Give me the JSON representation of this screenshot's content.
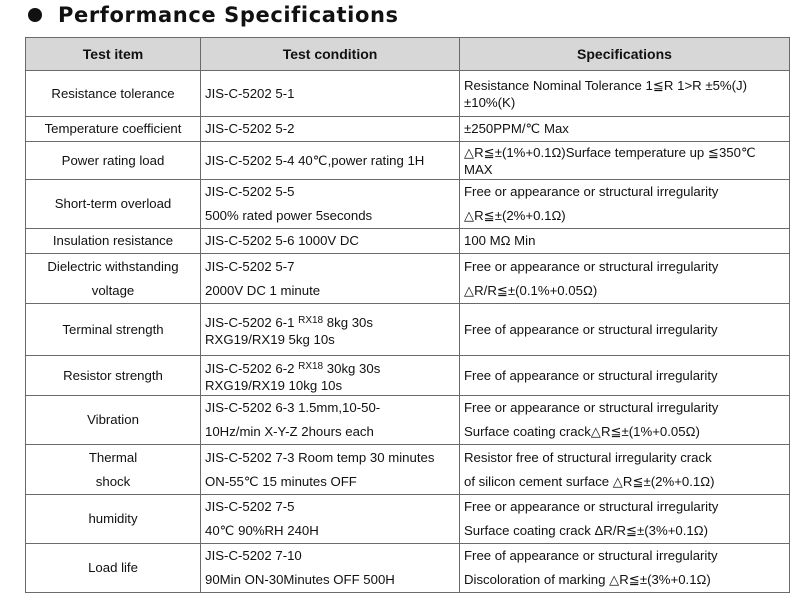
{
  "title": "Performance Specifications",
  "headers": {
    "item": "Test item",
    "condition": "Test  condition",
    "spec": "Specifications"
  },
  "rows": [
    {
      "item": [
        "Resistance tolerance"
      ],
      "condition": [
        "JIS-C-5202  5-1"
      ],
      "spec": [
        "Resistance  Nominal Tolerance 1≦R 1>R ±5%(J)",
        "±10%(K)"
      ]
    },
    {
      "item": [
        "Temperature coefficient"
      ],
      "condition": [
        "JIS-C-5202  5-2"
      ],
      "spec": [
        "±250PPM/℃    Max"
      ]
    },
    {
      "item": [
        "Power rating load"
      ],
      "condition": [
        "JIS-C-5202  5-4   40℃,power rating 1H"
      ],
      "spec": [
        "△R≦±(1%+0.1Ω)Surface temperature up ≦350℃",
        "MAX"
      ]
    },
    {
      "item": [
        "Short-term overload"
      ],
      "condition": [
        "JIS-C-5202  5-5",
        "500% rated power 5seconds"
      ],
      "spec": [
        "Free or appearance or structural irregularity",
        "△R≦±(2%+0.1Ω)"
      ]
    },
    {
      "item": [
        "Insulation resistance"
      ],
      "condition": [
        "JIS-C-5202  5-6  1000V  DC"
      ],
      "spec": [
        "100 MΩ Min"
      ]
    },
    {
      "item": [
        "Dielectric  withstanding",
        "voltage"
      ],
      "condition": [
        "JIS-C-5202  5-7",
        "2000V  DC  1 minute"
      ],
      "spec": [
        "Free or appearance or structural irregularity",
        "△R/R≦±(0.1%+0.05Ω)"
      ]
    },
    {
      "item": [
        "Terminal strength"
      ],
      "condition": [
        "JIS-C-5202 6-1 ",
        "RX18",
        " 8kg 30s",
        "RXG19/RX19   5kg 10s"
      ],
      "spec": [
        "Free of appearance or structural irregularity"
      ]
    },
    {
      "item": [
        "Resistor strength"
      ],
      "condition": [
        "JIS-C-5202 6-2 ",
        "RX18",
        " 30kg 30s",
        "RXG19/RX19   10kg 10s"
      ],
      "spec": [
        "Free of appearance or structural irregularity"
      ]
    },
    {
      "item": [
        "Vibration"
      ],
      "condition": [
        "JIS-C-5202  6-3   1.5mm,10-50-",
        "10Hz/min X-Y-Z 2hours each"
      ],
      "spec": [
        "Free or appearance or structural irregularity",
        "Surface coating crack△R≦±(1%+0.05Ω)"
      ]
    },
    {
      "item": [
        "Thermal",
        "shock"
      ],
      "condition": [
        "JIS-C-5202 7-3 Room temp 30 minutes",
        "ON-55℃ 15 minutes OFF"
      ],
      "spec": [
        "Resistor free of structural irregularity crack",
        " of silicon  cement surface △R≦±(2%+0.1Ω)"
      ]
    },
    {
      "item": [
        "humidity"
      ],
      "condition": [
        "JIS-C-5202  7-5",
        "40℃ 90%RH 240H"
      ],
      "spec": [
        "Free or appearance or structural irregularity",
        "Surface coating crack ΔR/R≦±(3%+0.1Ω)"
      ]
    },
    {
      "item": [
        "Load life"
      ],
      "condition": [
        "JIS-C-5202  7-10",
        "90Min ON-30Minutes OFF 500H"
      ],
      "spec": [
        "Free of appearance or structural irregularity",
        "Discoloration of marking △R≦±(3%+0.1Ω)"
      ]
    }
  ]
}
